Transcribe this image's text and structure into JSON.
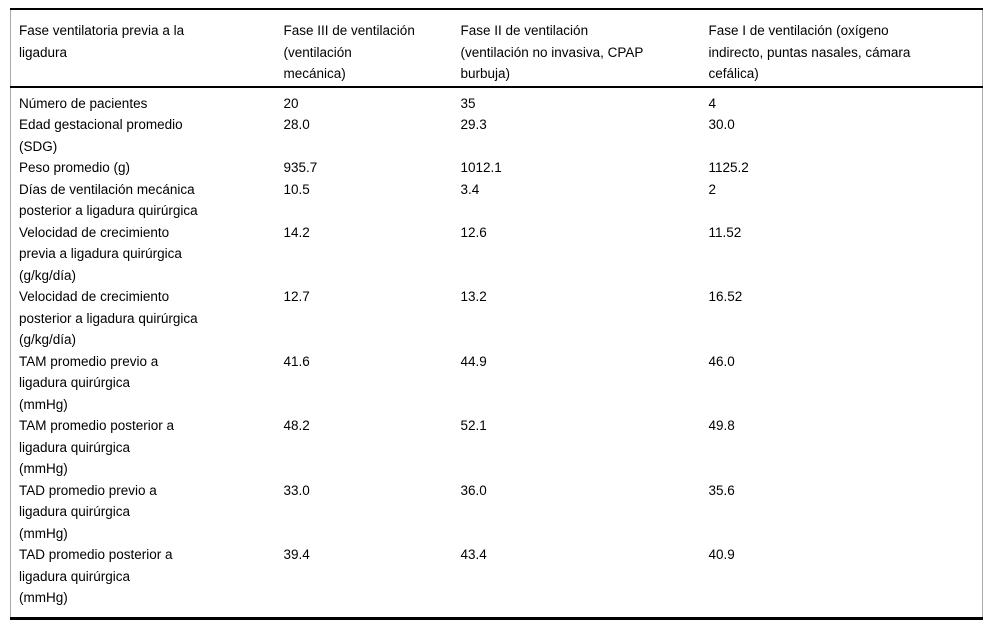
{
  "table": {
    "columns": [
      {
        "label": "Fase ventilatoria previa a la\nligadura"
      },
      {
        "label": "Fase III de ventilación\n(ventilación\nmecánica)"
      },
      {
        "label": "Fase II de ventilación\n(ventilación no invasiva, CPAP\nburbuja)"
      },
      {
        "label": "Fase I de ventilación (oxígeno\nindirecto, puntas nasales, cámara\ncefálica)"
      }
    ],
    "rows": [
      {
        "label": "Número de pacientes",
        "values": [
          "20",
          "35",
          "4"
        ]
      },
      {
        "label": "Edad gestacional promedio\n(SDG)",
        "values": [
          "28.0",
          "29.3",
          "30.0"
        ]
      },
      {
        "label": "Peso promedio (g)",
        "values": [
          "935.7",
          "1012.1",
          "1125.2"
        ]
      },
      {
        "label": "Días de ventilación mecánica\nposterior a ligadura quirúrgica",
        "values": [
          "10.5",
          "3.4",
          "2"
        ]
      },
      {
        "label": "Velocidad de crecimiento\nprevia a ligadura quirúrgica\n(g/kg/día)",
        "values": [
          "14.2",
          "12.6",
          "11.52"
        ]
      },
      {
        "label": "Velocidad de crecimiento\nposterior a ligadura quirúrgica\n(g/kg/día)",
        "values": [
          "12.7",
          "13.2",
          "16.52"
        ]
      },
      {
        "label": "TAM promedio previo a\nligadura quirúrgica\n(mmHg)",
        "values": [
          "41.6",
          "44.9",
          "46.0"
        ]
      },
      {
        "label": "TAM promedio posterior a\nligadura quirúrgica\n(mmHg)",
        "values": [
          "48.2",
          "52.1",
          "49.8"
        ]
      },
      {
        "label": "TAD promedio previo a\nligadura quirúrgica\n(mmHg)",
        "values": [
          "33.0",
          "36.0",
          "35.6"
        ]
      },
      {
        "label": "TAD promedio posterior a\nligadura quirúrgica\n(mmHg)",
        "values": [
          "39.4",
          "43.4",
          "40.9"
        ]
      }
    ],
    "colors": {
      "text": "#000000",
      "rule_strong": "#000000",
      "rule_side": "#a9a9a9",
      "background": "#ffffff"
    }
  }
}
